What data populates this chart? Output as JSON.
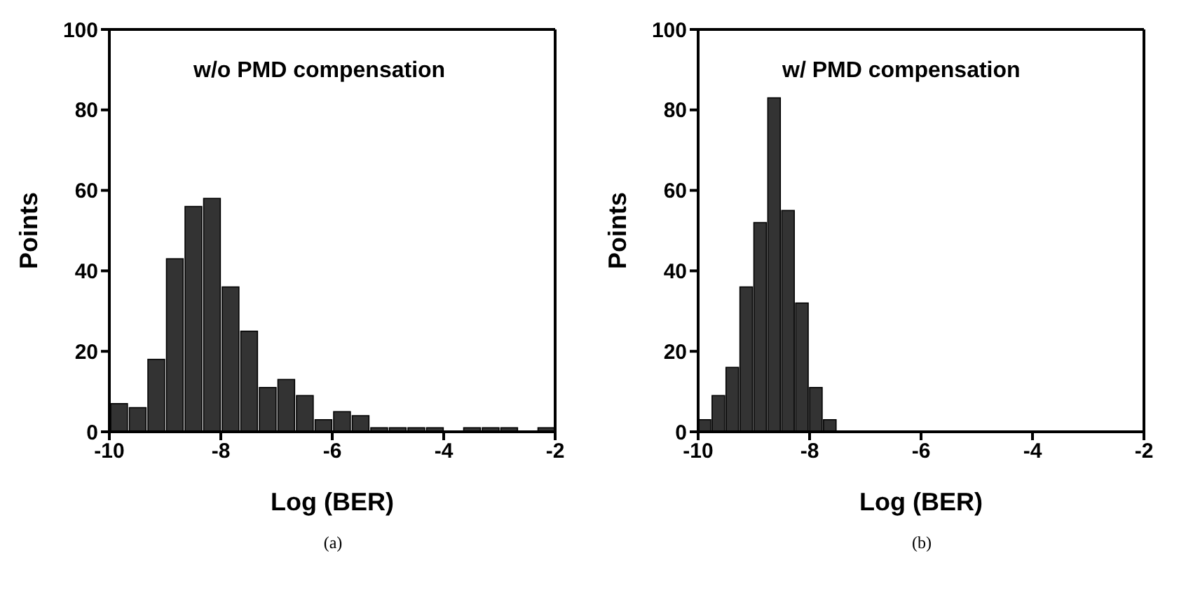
{
  "chart_data": [
    {
      "type": "histogram",
      "xlabel": "Log (BER)",
      "ylabel": "Points",
      "annotations": [
        "w/o PMD compensation",
        "(a)"
      ],
      "color": "#333333",
      "bins": [
        -10,
        -9.667,
        -9.333,
        -9,
        -8.667,
        -8.333,
        -8,
        -7.667,
        -7.333,
        -7,
        -6.667,
        -6.333,
        -6,
        -5.667,
        -5.333,
        -5,
        -4.667,
        -4.333,
        -4,
        -3.667,
        -3.333,
        -3,
        -2.667,
        -2.333,
        -2
      ],
      "values": [
        7,
        6,
        18,
        43,
        56,
        58,
        36,
        25,
        11,
        13,
        9,
        3,
        5,
        4,
        1,
        1,
        1,
        1,
        0,
        1,
        1,
        1,
        0,
        1
      ],
      "xlim": [
        -10,
        -2
      ],
      "xticks": [
        -10,
        -8,
        -6,
        -4,
        -2
      ],
      "ylim": [
        0,
        100
      ],
      "yticks": [
        0,
        20,
        40,
        60,
        80,
        100
      ],
      "grid": false
    },
    {
      "type": "histogram",
      "xlabel": "Log (BER)",
      "ylabel": "Points",
      "annotations": [
        "w/ PMD compensation",
        "(b)"
      ],
      "color": "#333333",
      "bins": [
        -10,
        -9.75,
        -9.5,
        -9.25,
        -9,
        -8.75,
        -8.5,
        -8.25,
        -8,
        -7.75,
        -7.5
      ],
      "values": [
        3,
        9,
        16,
        36,
        52,
        83,
        55,
        32,
        11,
        3
      ],
      "xlim": [
        -10,
        -2
      ],
      "xticks": [
        -10,
        -8,
        -6,
        -4,
        -2
      ],
      "ylim": [
        0,
        100
      ],
      "yticks": [
        0,
        20,
        40,
        60,
        80,
        100
      ],
      "grid": false
    }
  ]
}
